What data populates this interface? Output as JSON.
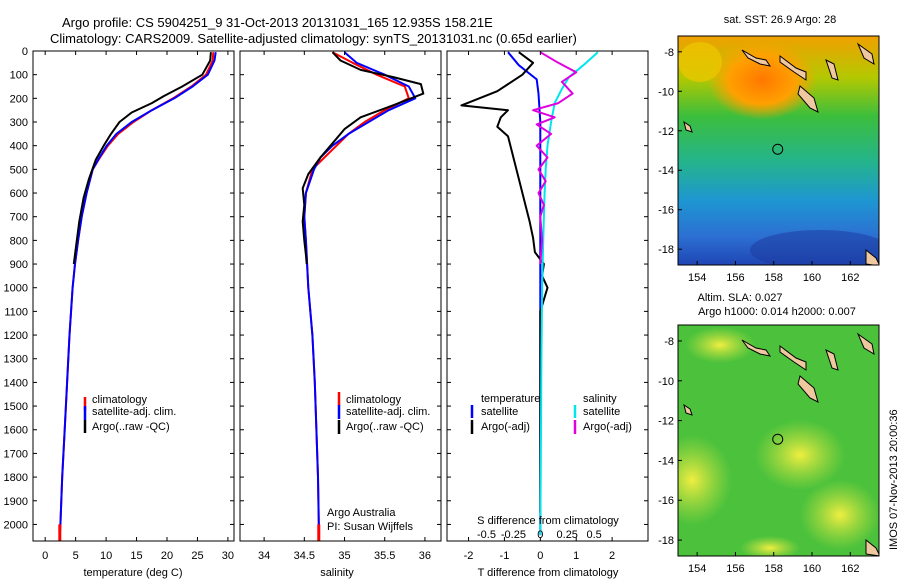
{
  "header": {
    "title_line1": "Argo profile: CS 5904251_9 31-Oct-2013 20131031_165 12.935S 158.21E",
    "title_line2": "Climatology: CARS2009. Satellite-adjusted climatology: synTS_20131031.nc (0.65d earlier)"
  },
  "side_stamp": "IMOS 07-Nov-2013 20:00:36",
  "chart_data": [
    {
      "id": "temperature",
      "type": "line",
      "xlabel": "temperature (deg C)",
      "ylabel": "",
      "xlim": [
        -2,
        31
      ],
      "ylim": [
        2070,
        0
      ],
      "xticks": [
        0,
        5,
        10,
        15,
        20,
        25,
        30
      ],
      "yticks": [
        0,
        100,
        200,
        300,
        400,
        500,
        600,
        700,
        800,
        900,
        1000,
        1100,
        1200,
        1300,
        1400,
        1500,
        1600,
        1700,
        1800,
        1900,
        2000
      ],
      "legend": [
        "climatology",
        "satellite-adj. clim.",
        "Argo(..raw -QC)"
      ],
      "series": [
        {
          "name": "climatology",
          "color": "#ff0000",
          "points": [
            [
              27.6,
              5
            ],
            [
              27.5,
              40
            ],
            [
              26.4,
              100
            ],
            [
              24,
              150
            ],
            [
              21,
              200
            ],
            [
              17.5,
              250
            ],
            [
              14.5,
              300
            ],
            [
              12,
              350
            ],
            [
              10.3,
              400
            ],
            [
              9,
              450
            ],
            [
              7.8,
              500
            ],
            [
              6.8,
              600
            ],
            [
              6.0,
              700
            ],
            [
              5.4,
              800
            ],
            [
              4.9,
              900
            ],
            [
              4.5,
              1000
            ],
            [
              4.0,
              1200
            ],
            [
              3.6,
              1400
            ],
            [
              3.2,
              1600
            ],
            [
              2.8,
              1800
            ],
            [
              2.5,
              2000
            ],
            [
              2.4,
              2045
            ]
          ]
        },
        {
          "name": "satellite-adj. clim.",
          "color": "#0000ff",
          "points": [
            [
              28.0,
              5
            ],
            [
              27.8,
              40
            ],
            [
              26.7,
              100
            ],
            [
              24.2,
              150
            ],
            [
              21.2,
              200
            ],
            [
              17.5,
              250
            ],
            [
              14.2,
              300
            ],
            [
              11.7,
              350
            ],
            [
              10.1,
              400
            ],
            [
              8.9,
              450
            ],
            [
              7.8,
              500
            ],
            [
              6.8,
              600
            ],
            [
              6.0,
              700
            ],
            [
              5.4,
              800
            ],
            [
              4.9,
              900
            ],
            [
              4.5,
              1000
            ],
            [
              4.0,
              1200
            ],
            [
              3.6,
              1400
            ],
            [
              3.2,
              1600
            ],
            [
              2.8,
              1800
            ],
            [
              2.5,
              2000
            ],
            [
              2.4,
              2045
            ]
          ]
        },
        {
          "name": "Argo(..raw -QC)",
          "color": "#000000",
          "points": [
            [
              27.2,
              5
            ],
            [
              27.1,
              40
            ],
            [
              25.8,
              100
            ],
            [
              22.5,
              150
            ],
            [
              19.5,
              190
            ],
            [
              17.5,
              220
            ],
            [
              14.2,
              260
            ],
            [
              12.2,
              300
            ],
            [
              10.8,
              350
            ],
            [
              9.6,
              400
            ],
            [
              8.3,
              460
            ],
            [
              7.2,
              540
            ],
            [
              6.3,
              620
            ],
            [
              5.6,
              720
            ],
            [
              5.1,
              820
            ],
            [
              4.7,
              900
            ]
          ]
        }
      ]
    },
    {
      "id": "salinity",
      "type": "line",
      "xlabel": "salinity",
      "xlim": [
        33.7,
        36.2
      ],
      "ylim": [
        2070,
        0
      ],
      "xticks": [
        34,
        34.5,
        35,
        35.5,
        36
      ],
      "legend": [
        "climatology",
        "satellite-adj. clim.",
        "Argo(..raw -QC)"
      ],
      "annotation": [
        "Argo Australia",
        "PI: Susan Wijffels"
      ],
      "series": [
        {
          "name": "climatology",
          "color": "#ff0000",
          "points": [
            [
              34.85,
              5
            ],
            [
              35.1,
              50
            ],
            [
              35.4,
              100
            ],
            [
              35.75,
              150
            ],
            [
              35.8,
              200
            ],
            [
              35.5,
              250
            ],
            [
              35.25,
              300
            ],
            [
              35.05,
              350
            ],
            [
              34.9,
              400
            ],
            [
              34.75,
              450
            ],
            [
              34.6,
              500
            ],
            [
              34.52,
              600
            ],
            [
              34.5,
              700
            ],
            [
              34.52,
              800
            ],
            [
              34.55,
              1000
            ],
            [
              34.6,
              1200
            ],
            [
              34.63,
              1400
            ],
            [
              34.65,
              1600
            ],
            [
              34.67,
              1800
            ],
            [
              34.68,
              2000
            ],
            [
              34.68,
              2045
            ]
          ]
        },
        {
          "name": "satellite-adj. clim.",
          "color": "#0000ff",
          "points": [
            [
              35.0,
              5
            ],
            [
              35.15,
              50
            ],
            [
              35.5,
              100
            ],
            [
              35.8,
              150
            ],
            [
              35.88,
              200
            ],
            [
              35.55,
              250
            ],
            [
              35.3,
              300
            ],
            [
              35.05,
              350
            ],
            [
              34.85,
              400
            ],
            [
              34.7,
              450
            ],
            [
              34.62,
              500
            ],
            [
              34.52,
              600
            ],
            [
              34.5,
              700
            ],
            [
              34.52,
              800
            ],
            [
              34.55,
              1000
            ],
            [
              34.6,
              1200
            ],
            [
              34.63,
              1400
            ],
            [
              34.65,
              1600
            ],
            [
              34.67,
              1800
            ],
            [
              34.68,
              2000
            ],
            [
              34.68,
              2045
            ]
          ]
        },
        {
          "name": "Argo(..raw -QC)",
          "color": "#000000",
          "points": [
            [
              34.85,
              5
            ],
            [
              34.95,
              40
            ],
            [
              35.2,
              80
            ],
            [
              35.6,
              110
            ],
            [
              35.95,
              140
            ],
            [
              35.98,
              180
            ],
            [
              35.6,
              230
            ],
            [
              35.2,
              280
            ],
            [
              35.0,
              330
            ],
            [
              34.85,
              390
            ],
            [
              34.7,
              450
            ],
            [
              34.55,
              520
            ],
            [
              34.48,
              580
            ],
            [
              34.5,
              650
            ],
            [
              34.48,
              720
            ],
            [
              34.5,
              800
            ],
            [
              34.52,
              860
            ],
            [
              34.53,
              900
            ]
          ]
        }
      ]
    },
    {
      "id": "difference",
      "type": "line",
      "xlabel": "T difference from climatology",
      "xlabel_top": "S difference from climatology",
      "xlim": [
        -2.6,
        3.0
      ],
      "ylim": [
        2070,
        0
      ],
      "xticks": [
        -2,
        -1,
        0,
        1,
        2
      ],
      "sticks": [
        "-0.5",
        "-0.25",
        "0",
        "0.25",
        "0.5"
      ],
      "legend_headers": [
        "temperature",
        "salinity"
      ],
      "legend": [
        "satellite",
        "Argo(-adj)",
        "satellite",
        "Argo(-adj)"
      ],
      "series": [
        {
          "name": "T satellite",
          "color": "#0000ff",
          "points": [
            [
              -0.9,
              5
            ],
            [
              -0.6,
              60
            ],
            [
              -0.1,
              120
            ],
            [
              -0.05,
              180
            ],
            [
              0.0,
              300
            ],
            [
              0.0,
              500
            ],
            [
              0.0,
              800
            ],
            [
              0.0,
              1200
            ],
            [
              0.0,
              1600
            ],
            [
              0.0,
              2045
            ]
          ]
        },
        {
          "name": "T Argo(-adj)",
          "color": "#000000",
          "points": [
            [
              -0.6,
              5
            ],
            [
              -0.2,
              50
            ],
            [
              -0.5,
              100
            ],
            [
              -1.2,
              170
            ],
            [
              -2.2,
              230
            ],
            [
              -0.9,
              250
            ],
            [
              -1.1,
              280
            ],
            [
              -1.2,
              320
            ],
            [
              -0.9,
              360
            ],
            [
              -0.8,
              420
            ],
            [
              -0.7,
              480
            ],
            [
              -0.6,
              540
            ],
            [
              -0.5,
              600
            ],
            [
              -0.4,
              660
            ],
            [
              -0.3,
              720
            ],
            [
              -0.2,
              790
            ],
            [
              -0.15,
              850
            ],
            [
              0.1,
              900
            ],
            [
              0.05,
              950
            ],
            [
              0.2,
              1000
            ],
            [
              0.0,
              1100
            ],
            [
              0.0,
              1500
            ],
            [
              0.0,
              1800
            ],
            [
              0.0,
              1950
            ]
          ]
        },
        {
          "name": "S satellite",
          "color": "#00e5ee",
          "points": [
            [
              1.6,
              5
            ],
            [
              1.2,
              60
            ],
            [
              0.8,
              110
            ],
            [
              0.6,
              160
            ],
            [
              0.4,
              220
            ],
            [
              0.3,
              300
            ],
            [
              0.2,
              400
            ],
            [
              0.15,
              500
            ],
            [
              0.12,
              600
            ],
            [
              0.08,
              800
            ],
            [
              0.05,
              1000
            ],
            [
              0.03,
              1300
            ],
            [
              0.02,
              1600
            ],
            [
              0.0,
              2045
            ]
          ]
        },
        {
          "name": "S Argo(-adj)",
          "color": "#e000e0",
          "points": [
            [
              0.0,
              5
            ],
            [
              0.5,
              50
            ],
            [
              1.0,
              90
            ],
            [
              0.6,
              130
            ],
            [
              0.9,
              180
            ],
            [
              0.5,
              220
            ],
            [
              -0.2,
              250
            ],
            [
              0.4,
              280
            ],
            [
              -0.1,
              310
            ],
            [
              0.3,
              350
            ],
            [
              -0.1,
              400
            ],
            [
              0.2,
              450
            ],
            [
              -0.05,
              500
            ],
            [
              0.15,
              550
            ],
            [
              -0.05,
              600
            ],
            [
              0.1,
              650
            ],
            [
              0.0,
              700
            ],
            [
              0.05,
              800
            ],
            [
              0.0,
              900
            ]
          ]
        }
      ]
    },
    {
      "id": "sst_map",
      "type": "heatmap",
      "title": "sat. SST: 26.9 Argo: 28",
      "xlim": [
        153,
        163.5
      ],
      "ylim": [
        -18.8,
        -7.2
      ],
      "xticks": [
        154,
        156,
        158,
        160,
        162
      ],
      "yticks": [
        -8,
        -10,
        -12,
        -14,
        -16,
        -18
      ],
      "marker": [
        158.21,
        -12.935
      ]
    },
    {
      "id": "sla_map",
      "type": "heatmap",
      "title_line1": "Altim. SLA: 0.027",
      "title_line2": "Argo h1000: 0.014 h2000: 0.007",
      "xlim": [
        153,
        163.5
      ],
      "ylim": [
        -18.8,
        -7.2
      ],
      "xticks": [
        154,
        156,
        158,
        160,
        162
      ],
      "yticks": [
        -8,
        -10,
        -12,
        -14,
        -16,
        -18
      ],
      "marker": [
        158.21,
        -12.935
      ]
    }
  ]
}
